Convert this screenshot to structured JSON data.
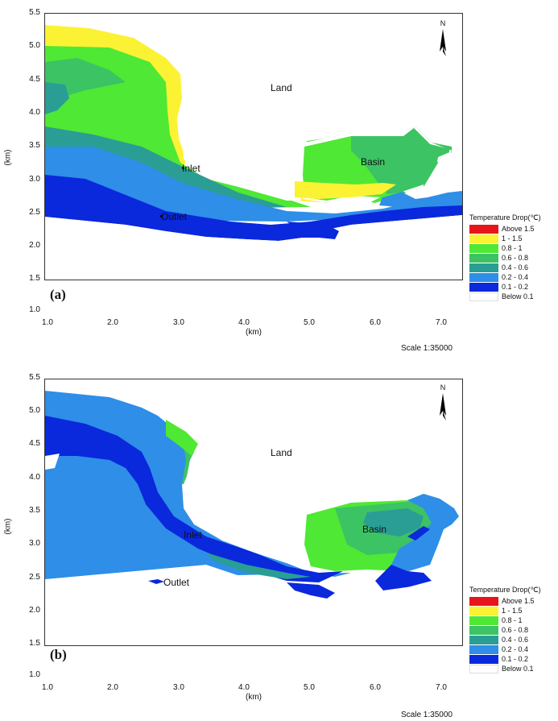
{
  "panels": [
    {
      "label": "(a)",
      "land_label": "Land",
      "basin_label": "Basin",
      "inlet_label": "Inlet",
      "outlet_label": "Outlet",
      "north_label": "N",
      "scale_label": "Scale 1:35000",
      "xlabel": "(km)",
      "ylabel": "(km)"
    },
    {
      "label": "(b)",
      "land_label": "Land",
      "basin_label": "Basin",
      "inlet_label": "Inlet",
      "outlet_label": "Outlet",
      "north_label": "N",
      "scale_label": "Scale 1:35000",
      "xlabel": "(km)",
      "ylabel": "(km)"
    }
  ],
  "axes": {
    "xticks": [
      "1.0",
      "2.0",
      "3.0",
      "4.0",
      "5.0",
      "6.0",
      "7.0"
    ],
    "yticks": [
      "5.5",
      "5.0",
      "4.5",
      "4.0",
      "3.5",
      "3.0",
      "2.5",
      "2.0",
      "1.5",
      "1.0"
    ],
    "xlim": [
      1.0,
      7.3
    ],
    "ylim": [
      1.0,
      5.5
    ]
  },
  "legend": {
    "title": "Temperature Drop(℃)",
    "items": [
      {
        "label": "Above 1.5",
        "color": "#e8141c"
      },
      {
        "label": "1 - 1.5",
        "color": "#fcf234"
      },
      {
        "label": "0.8 -   1",
        "color": "#4fe834"
      },
      {
        "label": "0.6 - 0.8",
        "color": "#3cc364"
      },
      {
        "label": "0.4 - 0.6",
        "color": "#2a9e94"
      },
      {
        "label": "0.2 - 0.4",
        "color": "#2e8ee8"
      },
      {
        "label": "0.1 - 0.2",
        "color": "#0a28dc"
      },
      {
        "label": "Below 0.1",
        "color": "#ffffff"
      }
    ]
  }
}
